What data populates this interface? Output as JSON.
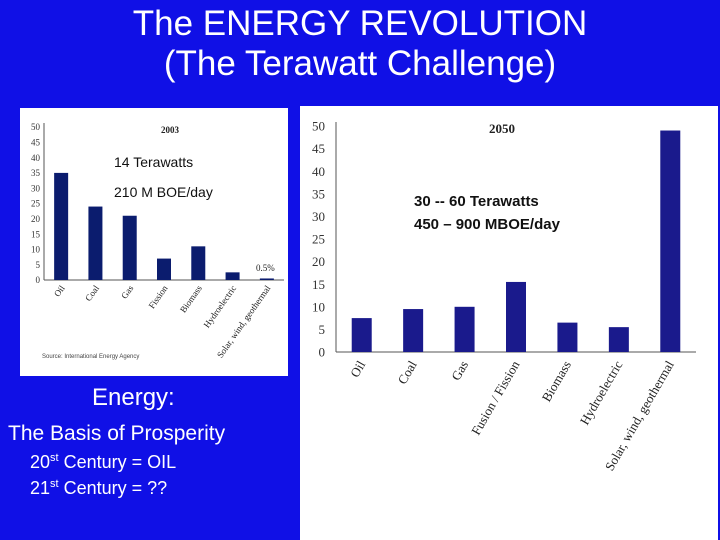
{
  "slide": {
    "title_line1": "The  ENERGY REVOLUTION",
    "title_line2": "(The Terawatt  Challenge)",
    "energy_heading": "Energy:",
    "basis_text": "The Basis of Prosperity",
    "century20_num": "20",
    "century20_sup": "st",
    "century20_text": " Century  =  OIL",
    "century21_num": "21",
    "century21_sup": "st",
    "century21_text": " Century  =  ??"
  },
  "chart_data": [
    {
      "type": "bar",
      "title": "2003",
      "categories": [
        "Oil",
        "Coal",
        "Gas",
        "Fission",
        "Biomass",
        "Hydroelectric",
        "Solar, wind, geothermal"
      ],
      "values": [
        35,
        24,
        21,
        7,
        11,
        2.5,
        0.5
      ],
      "ylim": [
        0,
        50
      ],
      "yticks": [
        0,
        5,
        10,
        15,
        20,
        25,
        30,
        35,
        40,
        45,
        50
      ],
      "bar_color": "#0b1c6e",
      "annotations": [
        "14 Terawatts",
        "210 M BOE/day",
        "0.5%"
      ],
      "source": "Source: International Energy Agency"
    },
    {
      "type": "bar",
      "title": "2050",
      "categories": [
        "Oil",
        "Coal",
        "Gas",
        "Fusion / Fission",
        "Biomass",
        "Hydroelectric",
        "Solar, wind, geothermal"
      ],
      "values": [
        7.5,
        9.5,
        10,
        15.5,
        6.5,
        5.5,
        49
      ],
      "ylim": [
        0,
        50
      ],
      "yticks": [
        0,
        5,
        10,
        15,
        20,
        25,
        30,
        35,
        40,
        45,
        50
      ],
      "bar_color": "#1a1a8c",
      "annotations": [
        "30 -- 60 Terawatts",
        "450 – 900  MBOE/day"
      ]
    }
  ]
}
